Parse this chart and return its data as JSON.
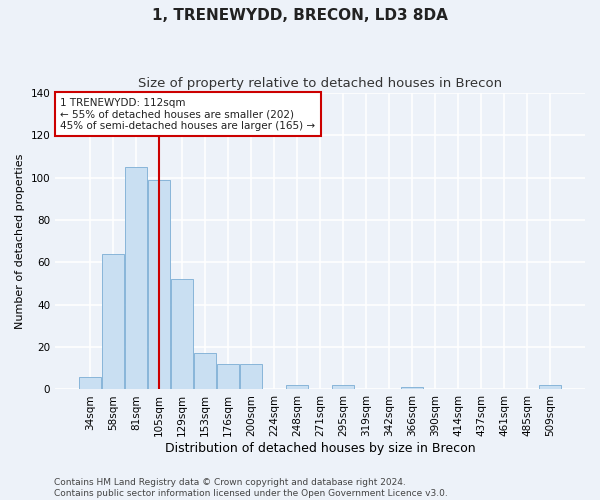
{
  "title": "1, TRENEWYDD, BRECON, LD3 8DA",
  "subtitle": "Size of property relative to detached houses in Brecon",
  "xlabel": "Distribution of detached houses by size in Brecon",
  "ylabel": "Number of detached properties",
  "categories": [
    "34sqm",
    "58sqm",
    "81sqm",
    "105sqm",
    "129sqm",
    "153sqm",
    "176sqm",
    "200sqm",
    "224sqm",
    "248sqm",
    "271sqm",
    "295sqm",
    "319sqm",
    "342sqm",
    "366sqm",
    "390sqm",
    "414sqm",
    "437sqm",
    "461sqm",
    "485sqm",
    "509sqm"
  ],
  "values": [
    6,
    64,
    105,
    99,
    52,
    17,
    12,
    12,
    0,
    2,
    0,
    2,
    0,
    0,
    1,
    0,
    0,
    0,
    0,
    0,
    2
  ],
  "bar_color": "#c9dff2",
  "bar_edge_color": "#7badd4",
  "background_color": "#edf2f9",
  "grid_color": "#ffffff",
  "annotation_text": "1 TRENEWYDD: 112sqm\n← 55% of detached houses are smaller (202)\n45% of semi-detached houses are larger (165) →",
  "annotation_box_color": "#ffffff",
  "annotation_box_edge_color": "#cc0000",
  "vline_x": 3.0,
  "vline_color": "#cc0000",
  "ylim": [
    0,
    140
  ],
  "yticks": [
    0,
    20,
    40,
    60,
    80,
    100,
    120,
    140
  ],
  "footer_text": "Contains HM Land Registry data © Crown copyright and database right 2024.\nContains public sector information licensed under the Open Government Licence v3.0.",
  "title_fontsize": 11,
  "subtitle_fontsize": 9.5,
  "xlabel_fontsize": 9,
  "ylabel_fontsize": 8,
  "tick_fontsize": 7.5,
  "annotation_fontsize": 7.5,
  "footer_fontsize": 6.5
}
